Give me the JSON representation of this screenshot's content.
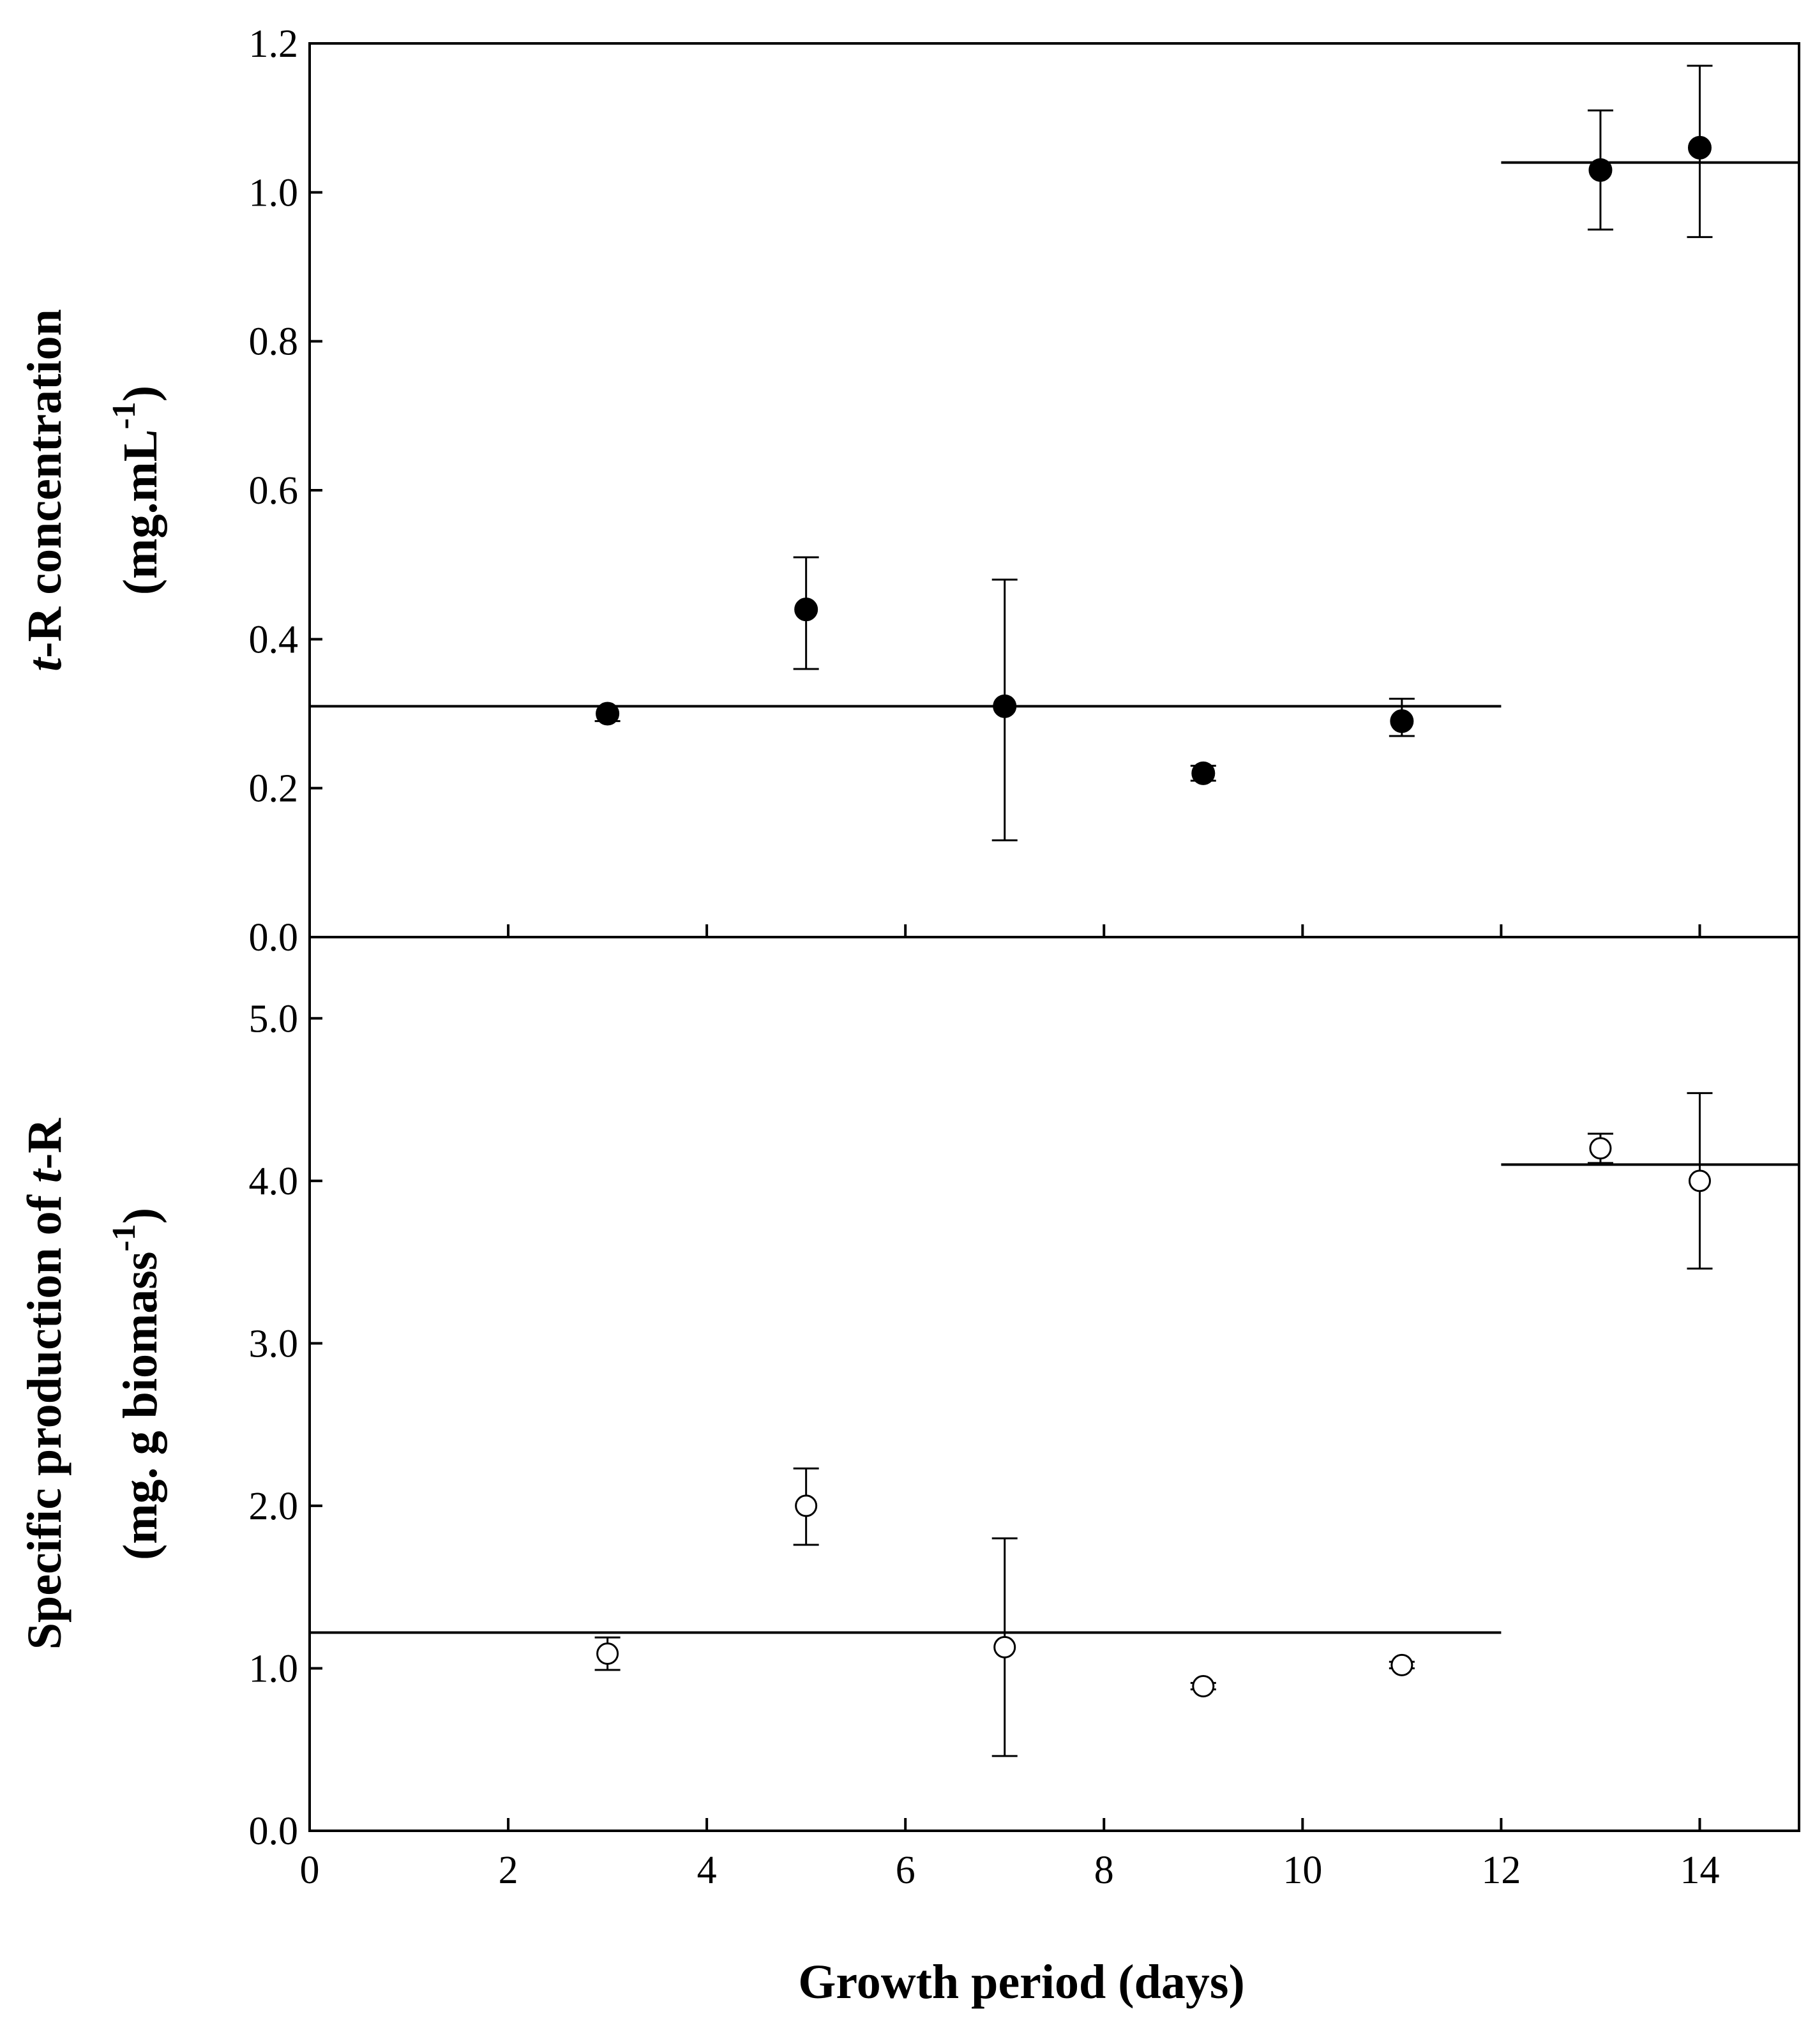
{
  "chart_data": {
    "type": "scatter",
    "x_axis": {
      "label": "Growth period (days)",
      "xlim": [
        0,
        15
      ],
      "ticks": [
        0,
        2,
        4,
        6,
        8,
        10,
        12,
        14
      ],
      "tick_labels": [
        "0",
        "2",
        "4",
        "6",
        "8",
        "10",
        "12",
        "14"
      ]
    },
    "panels": [
      {
        "id": "concentration",
        "ylabel_italic": "t",
        "ylabel_rest": "-R concentration",
        "yunit_text": "(mg.mL",
        "yunit_sup": "-1",
        "yunit_close": ")",
        "ylim": [
          0,
          1.2
        ],
        "ticks": [
          0,
          0.2,
          0.4,
          0.6,
          0.8,
          1.0,
          1.2
        ],
        "tick_labels": [
          "0.0",
          "0.2",
          "0.4",
          "0.6",
          "0.8",
          "1.0",
          "1.2"
        ],
        "marker": "filled-circle",
        "points": [
          {
            "x": 3,
            "y": 0.3,
            "err_low": 0.29,
            "err_high": 0.31
          },
          {
            "x": 5,
            "y": 0.44,
            "err_low": 0.36,
            "err_high": 0.51
          },
          {
            "x": 7,
            "y": 0.31,
            "err_low": 0.13,
            "err_high": 0.48
          },
          {
            "x": 9,
            "y": 0.22,
            "err_low": 0.21,
            "err_high": 0.23
          },
          {
            "x": 11,
            "y": 0.29,
            "err_low": 0.27,
            "err_high": 0.32
          },
          {
            "x": 13,
            "y": 1.03,
            "err_low": 0.95,
            "err_high": 1.11
          },
          {
            "x": 14,
            "y": 1.06,
            "err_low": 0.94,
            "err_high": 1.17
          }
        ],
        "mean_lines": [
          {
            "x_start": 0,
            "x_end": 12,
            "y": 0.31
          },
          {
            "x_start": 12,
            "x_end": 15,
            "y": 1.04
          }
        ]
      },
      {
        "id": "specific-production",
        "ylabel_rest": "Specific production of ",
        "ylabel_italic": "t",
        "ylabel_tail": "-R",
        "yunit_text": "(mg. g biomass",
        "yunit_sup": "-1",
        "yunit_close": ")",
        "ylim": [
          0,
          5.5
        ],
        "ticks": [
          0,
          1,
          2,
          3,
          4,
          5
        ],
        "tick_labels": [
          "0.0",
          "1.0",
          "2.0",
          "3.0",
          "4.0",
          "5.0"
        ],
        "marker": "open-circle",
        "points": [
          {
            "x": 3,
            "y": 1.09,
            "err_low": 0.99,
            "err_high": 1.19
          },
          {
            "x": 5,
            "y": 2.0,
            "err_low": 1.76,
            "err_high": 2.23
          },
          {
            "x": 7,
            "y": 1.13,
            "err_low": 0.46,
            "err_high": 1.8
          },
          {
            "x": 9,
            "y": 0.89,
            "err_low": 0.87,
            "err_high": 0.91
          },
          {
            "x": 11,
            "y": 1.02,
            "err_low": 1.0,
            "err_high": 1.04
          },
          {
            "x": 13,
            "y": 4.2,
            "err_low": 4.11,
            "err_high": 4.29
          },
          {
            "x": 14,
            "y": 4.0,
            "err_low": 3.46,
            "err_high": 4.54
          }
        ],
        "mean_lines": [
          {
            "x_start": 0,
            "x_end": 12,
            "y": 1.22
          },
          {
            "x_start": 12,
            "x_end": 15,
            "y": 4.1
          }
        ]
      }
    ]
  }
}
